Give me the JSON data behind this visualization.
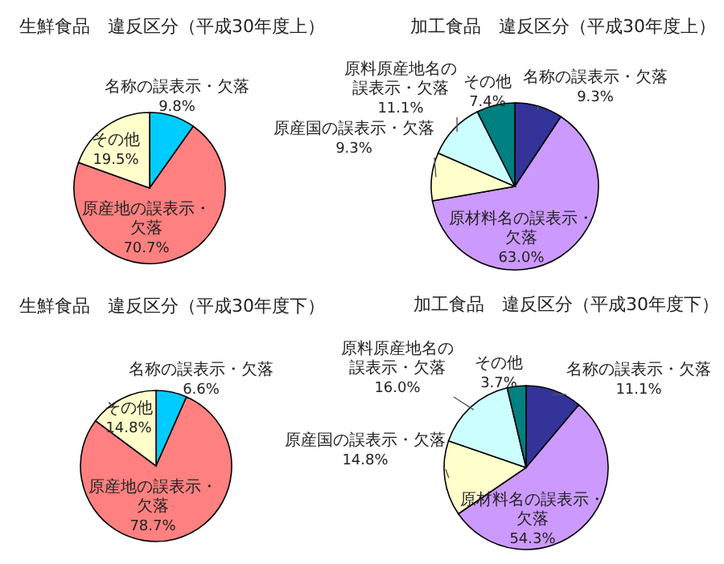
{
  "chart_data": [
    {
      "type": "pie",
      "title": "生鮮食品　違反区分（平成30年度上）",
      "categories": [
        "名称の誤表示・欠落",
        "原産地の誤表示・欠落",
        "その他"
      ],
      "values": [
        9.8,
        70.7,
        19.5
      ],
      "value_labels": [
        "9.8%",
        "70.7%",
        "19.5%"
      ],
      "colors": [
        "#00ccff",
        "#ff8080",
        "#ffffcc"
      ]
    },
    {
      "type": "pie",
      "title": "加工食品　違反区分（平成30年度上）",
      "categories": [
        "名称の誤表示・欠落",
        "原材料名の誤表示・欠落",
        "原産国の誤表示・欠落",
        "原料原産地名の誤表示・欠落",
        "その他"
      ],
      "values": [
        9.3,
        63.0,
        9.3,
        11.1,
        7.4
      ],
      "value_labels": [
        "9.3%",
        "63.0%",
        "9.3%",
        "11.1%",
        "7.4%"
      ],
      "colors": [
        "#333399",
        "#cc99ff",
        "#ffffcc",
        "#ccffff",
        "#008080"
      ]
    },
    {
      "type": "pie",
      "title": "生鮮食品　違反区分（平成30年度下）",
      "categories": [
        "名称の誤表示・欠落",
        "原産地の誤表示・欠落",
        "その他"
      ],
      "values": [
        6.6,
        78.7,
        14.8
      ],
      "value_labels": [
        "6.6%",
        "78.7%",
        "14.8%"
      ],
      "colors": [
        "#00ccff",
        "#ff8080",
        "#ffffcc"
      ]
    },
    {
      "type": "pie",
      "title": "加工食品　違反区分（平成30年度下）",
      "categories": [
        "名称の誤表示・欠落",
        "原材料名の誤表示・欠落",
        "原産国の誤表示・欠落",
        "原料原産地名の誤表示・欠落",
        "その他"
      ],
      "values": [
        11.1,
        54.3,
        14.8,
        16.0,
        3.7
      ],
      "value_labels": [
        "11.1%",
        "54.3%",
        "14.8%",
        "16.0%",
        "3.7%"
      ],
      "colors": [
        "#333399",
        "#cc99ff",
        "#ffffcc",
        "#ccffff",
        "#008080"
      ]
    }
  ]
}
